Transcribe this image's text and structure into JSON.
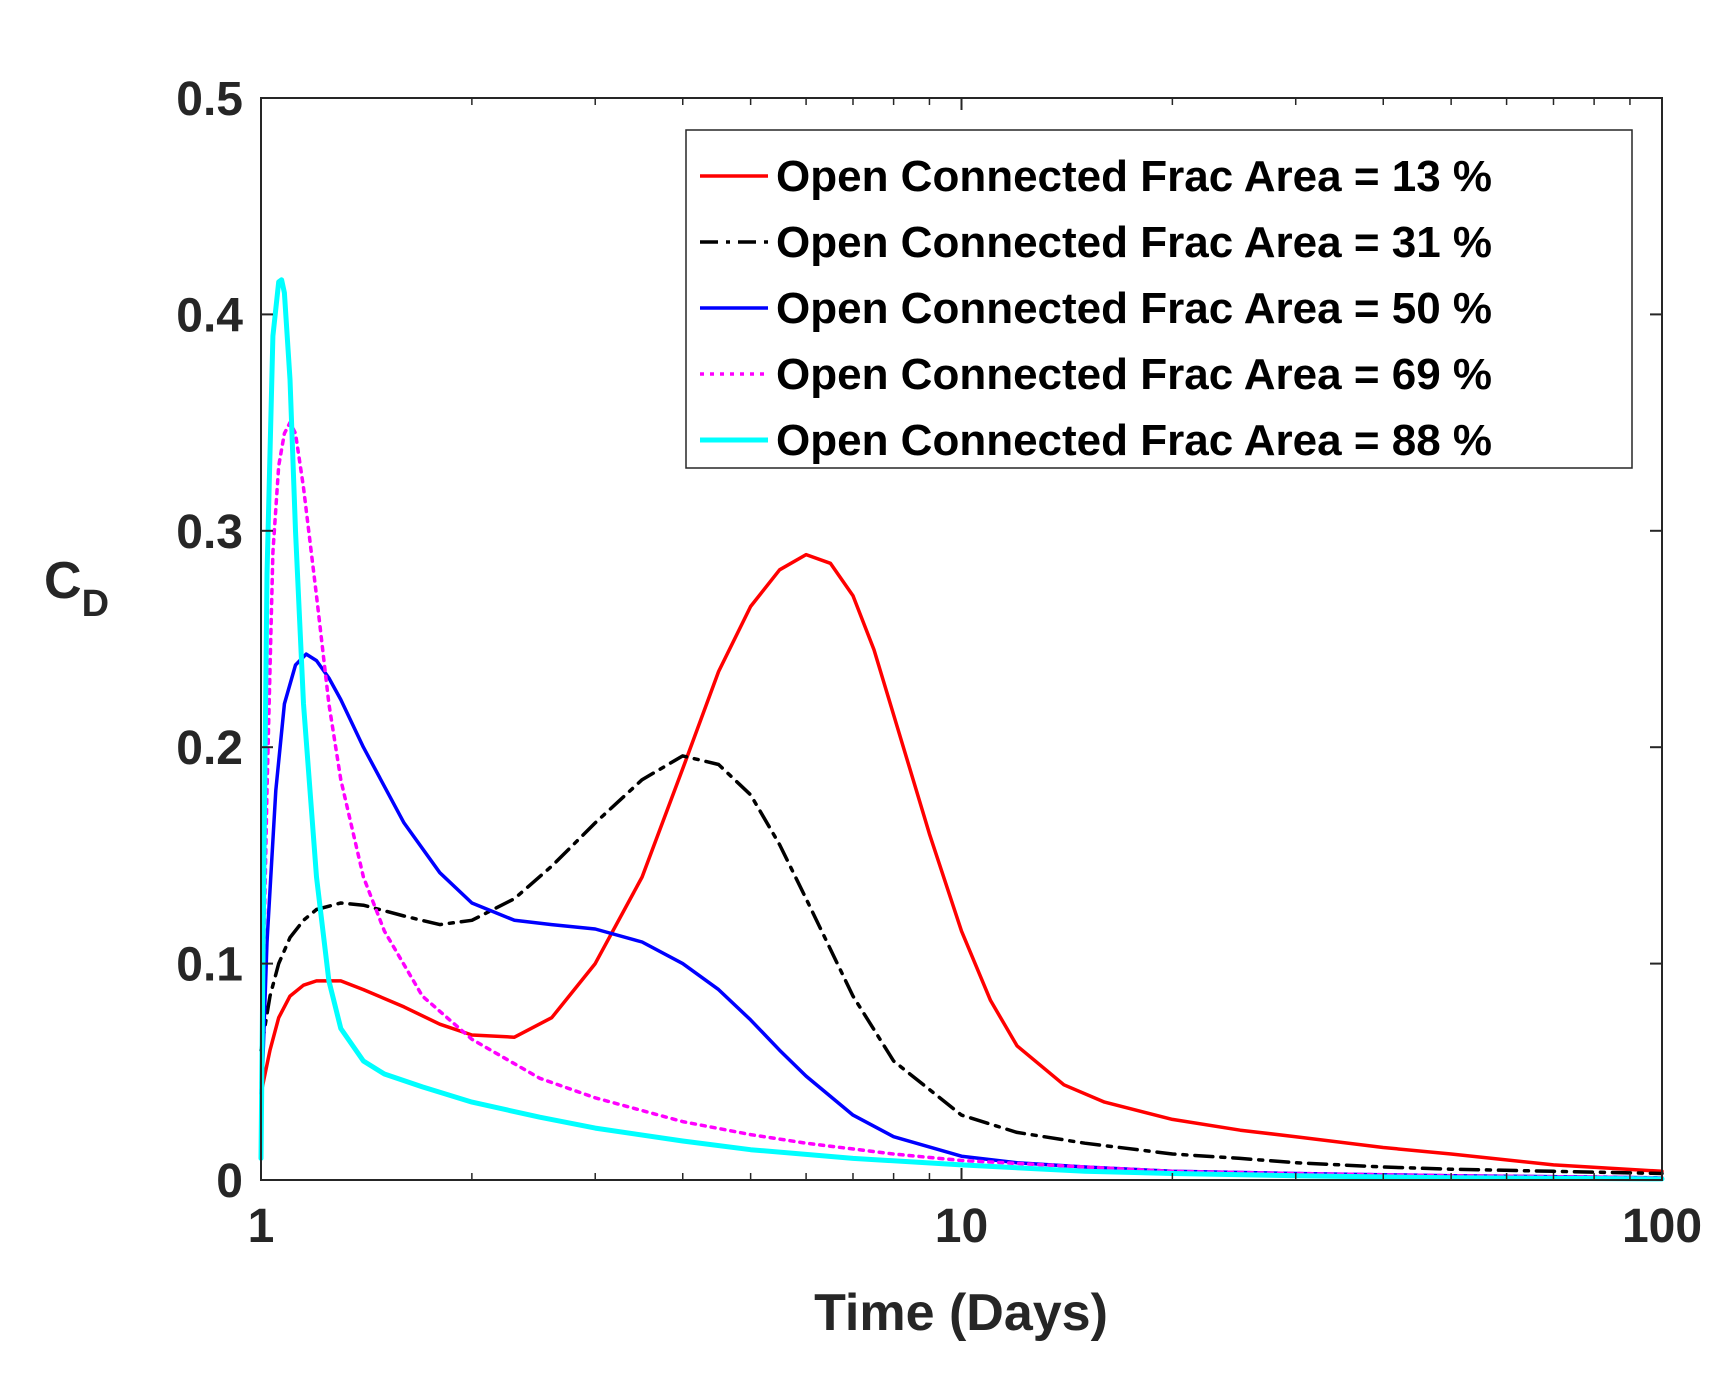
{
  "chart_data": {
    "type": "line",
    "xlabel": "Time (Days)",
    "ylabel_main": "C",
    "ylabel_sub": "D",
    "xscale": "log",
    "xlim": [
      1,
      100
    ],
    "ylim": [
      0,
      0.5
    ],
    "xticks": [
      1,
      10,
      100
    ],
    "xtick_labels": [
      "1",
      "10",
      "100"
    ],
    "yticks": [
      0,
      0.1,
      0.2,
      0.3,
      0.4,
      0.5
    ],
    "ytick_labels": [
      "0",
      "0.1",
      "0.2",
      "0.3",
      "0.4",
      "0.5"
    ],
    "grid": false,
    "legend_position": "top-right",
    "series": [
      {
        "name": "Open Connected Frac Area = 13 %",
        "color": "#ff0000",
        "style": "solid",
        "x": [
          1,
          1.03,
          1.06,
          1.1,
          1.15,
          1.2,
          1.3,
          1.4,
          1.6,
          1.8,
          2,
          2.3,
          2.6,
          3,
          3.5,
          4,
          4.5,
          5,
          5.5,
          6,
          6.5,
          7,
          7.5,
          8,
          9,
          10,
          11,
          12,
          14,
          16,
          20,
          25,
          30,
          40,
          50,
          70,
          100
        ],
        "y": [
          0.04,
          0.06,
          0.075,
          0.085,
          0.09,
          0.092,
          0.092,
          0.088,
          0.08,
          0.072,
          0.067,
          0.066,
          0.075,
          0.1,
          0.14,
          0.19,
          0.235,
          0.265,
          0.282,
          0.289,
          0.285,
          0.27,
          0.245,
          0.215,
          0.16,
          0.115,
          0.083,
          0.062,
          0.044,
          0.036,
          0.028,
          0.023,
          0.02,
          0.015,
          0.012,
          0.007,
          0.004
        ]
      },
      {
        "name": "Open Connected Frac Area = 31 %",
        "color": "#000000",
        "style": "dashdot",
        "x": [
          1,
          1.03,
          1.06,
          1.1,
          1.15,
          1.2,
          1.3,
          1.4,
          1.6,
          1.8,
          2,
          2.3,
          2.6,
          3,
          3.5,
          4,
          4.5,
          5,
          5.5,
          6,
          7,
          8,
          10,
          12,
          15,
          20,
          25,
          30,
          40,
          50,
          70,
          100
        ],
        "y": [
          0.06,
          0.085,
          0.1,
          0.112,
          0.12,
          0.125,
          0.128,
          0.127,
          0.122,
          0.118,
          0.12,
          0.13,
          0.145,
          0.165,
          0.185,
          0.196,
          0.192,
          0.178,
          0.155,
          0.13,
          0.085,
          0.055,
          0.03,
          0.022,
          0.017,
          0.012,
          0.01,
          0.008,
          0.006,
          0.005,
          0.004,
          0.003
        ]
      },
      {
        "name": "Open Connected Frac Area = 50 %",
        "color": "#0000ff",
        "style": "solid",
        "x": [
          1,
          1.02,
          1.05,
          1.08,
          1.12,
          1.16,
          1.2,
          1.25,
          1.3,
          1.4,
          1.6,
          1.8,
          2,
          2.3,
          2.6,
          3,
          3.5,
          4,
          4.5,
          5,
          5.5,
          6,
          7,
          8,
          10,
          12,
          15,
          20,
          30,
          50,
          100
        ],
        "y": [
          0.03,
          0.11,
          0.18,
          0.22,
          0.238,
          0.243,
          0.24,
          0.232,
          0.222,
          0.2,
          0.165,
          0.142,
          0.128,
          0.12,
          0.118,
          0.116,
          0.11,
          0.1,
          0.088,
          0.074,
          0.06,
          0.048,
          0.03,
          0.02,
          0.011,
          0.008,
          0.006,
          0.004,
          0.003,
          0.002,
          0.001
        ]
      },
      {
        "name": "Open Connected Frac Area = 69 %",
        "color": "#ff00ff",
        "style": "dotted",
        "x": [
          1,
          1.02,
          1.04,
          1.06,
          1.08,
          1.1,
          1.12,
          1.15,
          1.2,
          1.25,
          1.3,
          1.4,
          1.5,
          1.7,
          2,
          2.5,
          3,
          4,
          5,
          6,
          8,
          10,
          15,
          20,
          30,
          50,
          100
        ],
        "y": [
          0.04,
          0.18,
          0.29,
          0.33,
          0.345,
          0.35,
          0.345,
          0.32,
          0.27,
          0.22,
          0.185,
          0.14,
          0.115,
          0.085,
          0.065,
          0.047,
          0.038,
          0.027,
          0.021,
          0.017,
          0.012,
          0.009,
          0.006,
          0.004,
          0.003,
          0.002,
          0.001
        ]
      },
      {
        "name": "Open Connected Frac Area = 88 %",
        "color": "#00ffff",
        "style": "solid",
        "x": [
          1,
          1.01,
          1.02,
          1.04,
          1.06,
          1.07,
          1.08,
          1.1,
          1.12,
          1.15,
          1.2,
          1.25,
          1.3,
          1.4,
          1.5,
          1.7,
          2,
          2.5,
          3,
          4,
          5,
          7,
          10,
          15,
          20,
          30,
          50,
          100
        ],
        "y": [
          0.01,
          0.15,
          0.28,
          0.39,
          0.415,
          0.416,
          0.41,
          0.37,
          0.3,
          0.22,
          0.14,
          0.092,
          0.07,
          0.055,
          0.049,
          0.043,
          0.036,
          0.029,
          0.024,
          0.018,
          0.014,
          0.01,
          0.007,
          0.004,
          0.003,
          0.002,
          0.001,
          0.0005
        ]
      }
    ]
  }
}
